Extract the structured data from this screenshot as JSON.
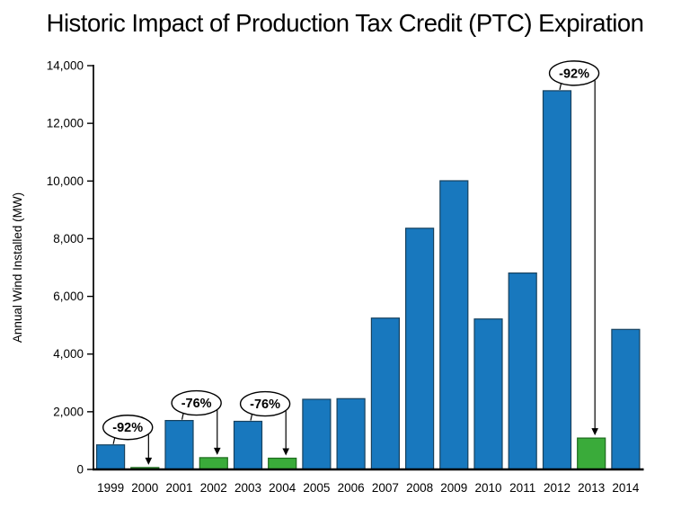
{
  "title": "Historic Impact of Production Tax Credit (PTC) Expiration",
  "chart_data": {
    "type": "bar",
    "title": "Historic Impact of Production Tax Credit (PTC) Expiration",
    "xlabel": "",
    "ylabel": "Annual Wind Installed (MW)",
    "categories": [
      "1999",
      "2000",
      "2001",
      "2002",
      "2003",
      "2004",
      "2005",
      "2006",
      "2007",
      "2008",
      "2009",
      "2010",
      "2011",
      "2012",
      "2013",
      "2014"
    ],
    "values": [
      850,
      67,
      1697,
      410,
      1667,
      389,
      2431,
      2454,
      5249,
      8362,
      10010,
      5216,
      6810,
      13131,
      1087,
      4854
    ],
    "ylim": [
      0,
      14000
    ],
    "ytick_step": 2000,
    "ytick_labels": [
      "0",
      "2,000",
      "4,000",
      "6,000",
      "8,000",
      "10,000",
      "12,000",
      "14,000"
    ],
    "grid": false,
    "legend": "none",
    "bar_color": "#1878BE",
    "bar_border_color": "#17415E",
    "highlight_color": "#3AAB3A",
    "highlight_border_color": "#1D6B1D",
    "highlight_years": [
      "2000",
      "2002",
      "2004",
      "2013"
    ],
    "annotation_bubble_fill": "#FFFFFF",
    "annotation_line_color": "#000000",
    "annotations": [
      {
        "label": "-92%",
        "from": "1999",
        "to": "2000"
      },
      {
        "label": "-76%",
        "from": "2001",
        "to": "2002"
      },
      {
        "label": "-76%",
        "from": "2003",
        "to": "2004"
      },
      {
        "label": "-92%",
        "from": "2012",
        "to": "2013"
      }
    ]
  }
}
